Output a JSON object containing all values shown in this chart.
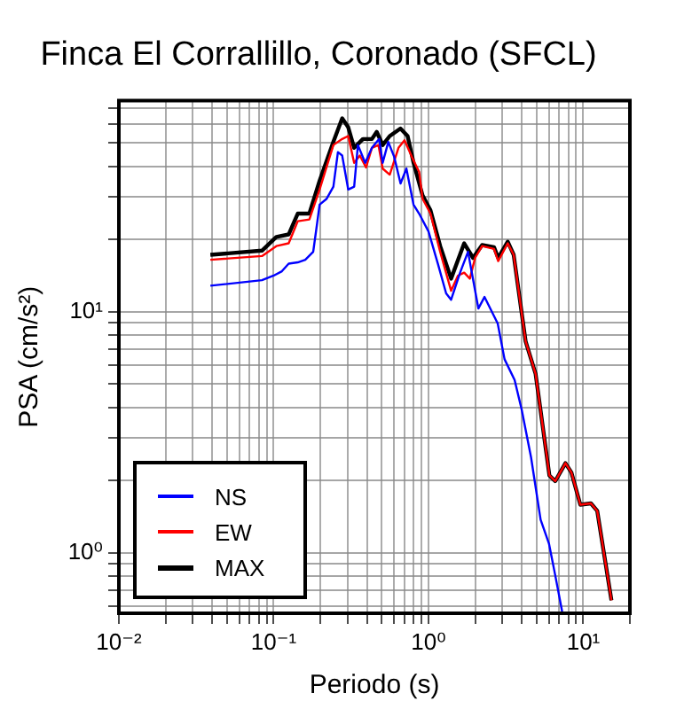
{
  "chart_data": {
    "type": "line",
    "title": "Finca El Corrallillo, Coronado (SFCL)",
    "xlabel": "Periodo (s)",
    "ylabel": "PSA (cm/s²)",
    "log": "xy",
    "grid": true,
    "legend": "bottom left",
    "marker": "none",
    "line_style": "solid",
    "xlim": [
      0.01,
      20
    ],
    "ylim": [
      0.56,
      75
    ],
    "xticks": [
      {
        "value": 0.01,
        "label": "10⁻²"
      },
      {
        "value": 0.02,
        "label": null
      },
      {
        "value": 0.03,
        "label": null
      },
      {
        "value": 0.04,
        "label": null
      },
      {
        "value": 0.05,
        "label": null
      },
      {
        "value": 0.06,
        "label": null
      },
      {
        "value": 0.07,
        "label": null
      },
      {
        "value": 0.08,
        "label": null
      },
      {
        "value": 0.09,
        "label": null
      },
      {
        "value": 0.1,
        "label": "10⁻¹"
      },
      {
        "value": 0.2,
        "label": null
      },
      {
        "value": 0.3,
        "label": null
      },
      {
        "value": 0.4,
        "label": null
      },
      {
        "value": 0.5,
        "label": null
      },
      {
        "value": 0.6,
        "label": null
      },
      {
        "value": 0.7,
        "label": null
      },
      {
        "value": 0.8,
        "label": null
      },
      {
        "value": 0.9,
        "label": null
      },
      {
        "value": 1,
        "label": "10⁰"
      },
      {
        "value": 2,
        "label": null
      },
      {
        "value": 3,
        "label": null
      },
      {
        "value": 4,
        "label": null
      },
      {
        "value": 5,
        "label": null
      },
      {
        "value": 6,
        "label": null
      },
      {
        "value": 7,
        "label": null
      },
      {
        "value": 8,
        "label": null
      },
      {
        "value": 9,
        "label": null
      },
      {
        "value": 10,
        "label": "10¹"
      },
      {
        "value": 20,
        "label": null
      }
    ],
    "yticks": [
      {
        "value": 0.6,
        "label": null
      },
      {
        "value": 0.7,
        "label": null
      },
      {
        "value": 0.8,
        "label": null
      },
      {
        "value": 0.9,
        "label": null
      },
      {
        "value": 1,
        "label": "10⁰"
      },
      {
        "value": 2,
        "label": null
      },
      {
        "value": 3,
        "label": null
      },
      {
        "value": 4,
        "label": null
      },
      {
        "value": 5,
        "label": null
      },
      {
        "value": 6,
        "label": null
      },
      {
        "value": 7,
        "label": null
      },
      {
        "value": 8,
        "label": null
      },
      {
        "value": 9,
        "label": null
      },
      {
        "value": 10,
        "label": "10¹"
      },
      {
        "value": 20,
        "label": null
      },
      {
        "value": 30,
        "label": null
      },
      {
        "value": 40,
        "label": null
      },
      {
        "value": 50,
        "label": null
      },
      {
        "value": 60,
        "label": null
      },
      {
        "value": 70,
        "label": null
      }
    ],
    "series": [
      {
        "name": "NS",
        "color": "#0000ff",
        "x": [
          0.039,
          0.084,
          0.1,
          0.113,
          0.125,
          0.143,
          0.16,
          0.18,
          0.19,
          0.198,
          0.22,
          0.243,
          0.26,
          0.277,
          0.303,
          0.331,
          0.35,
          0.39,
          0.431,
          0.48,
          0.506,
          0.55,
          0.6,
          0.66,
          0.72,
          0.8,
          0.87,
          1.0,
          1.15,
          1.3,
          1.4,
          1.6,
          1.8,
          2.1,
          2.3,
          2.8,
          3.1,
          3.6,
          4.0,
          4.6,
          5.3,
          6.0,
          6.6,
          7.3
        ],
        "values": [
          12.8,
          13.5,
          14.1,
          14.7,
          15.8,
          16.0,
          16.4,
          17.7,
          22.8,
          27.8,
          29.4,
          33.0,
          45.9,
          44.4,
          32.1,
          33.0,
          49.1,
          41.4,
          47.8,
          52,
          41.4,
          50.6,
          43.9,
          34,
          39.2,
          27.8,
          25.5,
          21.5,
          15.8,
          11.9,
          11.2,
          14.5,
          17.7,
          10.3,
          11.5,
          8.93,
          6.34,
          5.2,
          3.92,
          2.48,
          1.37,
          1.09,
          0.8,
          0.57
        ]
      },
      {
        "name": "EW",
        "color": "#ff0000",
        "x": [
          0.039,
          0.084,
          0.104,
          0.125,
          0.143,
          0.17,
          0.198,
          0.243,
          0.277,
          0.303,
          0.331,
          0.36,
          0.395,
          0.431,
          0.475,
          0.506,
          0.562,
          0.64,
          0.7,
          0.78,
          0.87,
          0.916,
          1.03,
          1.19,
          1.4,
          1.55,
          1.7,
          1.85,
          2.0,
          2.22,
          2.65,
          2.82,
          3.25,
          3.55,
          4.24,
          4.92,
          6.04,
          6.59,
          7.67,
          8.38,
          9.57,
          11.2,
          12.3,
          15.2
        ],
        "values": [
          16.4,
          17.0,
          18.7,
          19.2,
          23.7,
          24.1,
          32.1,
          49.1,
          52,
          53.5,
          41.4,
          44.4,
          39.6,
          47.8,
          49.1,
          39.2,
          37.0,
          47.8,
          51.4,
          43.9,
          38,
          29.4,
          25.5,
          17.7,
          12.2,
          14.1,
          14.5,
          13.7,
          16.7,
          18.7,
          18.2,
          16.2,
          19.2,
          17.2,
          7.53,
          5.51,
          2.09,
          1.98,
          2.35,
          2.15,
          1.58,
          1.6,
          1.49,
          0.634
        ]
      },
      {
        "name": "MAX",
        "color": "#000000",
        "x": [
          0.039,
          0.084,
          0.104,
          0.125,
          0.143,
          0.17,
          0.198,
          0.243,
          0.277,
          0.303,
          0.331,
          0.377,
          0.431,
          0.463,
          0.506,
          0.562,
          0.659,
          0.733,
          0.801,
          0.916,
          1.03,
          1.19,
          1.4,
          1.7,
          1.94,
          2.22,
          2.65,
          2.82,
          3.25,
          3.55,
          4.24,
          4.92,
          6.04,
          6.59,
          7.67,
          8.38,
          9.57,
          11.2,
          12.3,
          15.2
        ],
        "values": [
          17.2,
          17.9,
          20.4,
          20.9,
          25.5,
          25.5,
          34.9,
          50.6,
          63.4,
          58.2,
          47.8,
          52,
          52,
          55.7,
          49.1,
          53.5,
          57.5,
          53.5,
          41.4,
          30.3,
          26.3,
          18.7,
          13.7,
          19.2,
          16.7,
          18.9,
          18.5,
          16.7,
          19.5,
          17.2,
          7.53,
          5.51,
          2.09,
          1.98,
          2.35,
          2.15,
          1.58,
          1.6,
          1.49,
          0.634
        ]
      }
    ]
  }
}
